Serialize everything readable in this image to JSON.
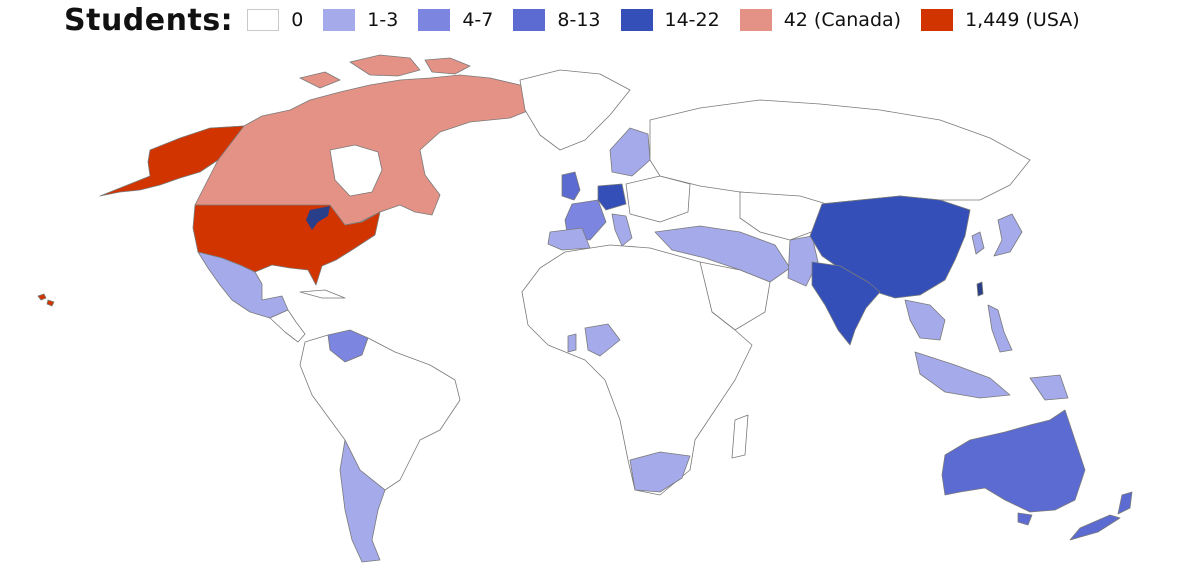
{
  "legend": {
    "title": "Students:",
    "items": [
      {
        "label": "0",
        "color": "#ffffff"
      },
      {
        "label": "1-3",
        "color": "#a5aaeb"
      },
      {
        "label": "4-7",
        "color": "#7c85df"
      },
      {
        "label": "8-13",
        "color": "#5b6bd2"
      },
      {
        "label": "14-22",
        "color": "#3450b8"
      },
      {
        "label": "42 (Canada)",
        "color": "#e49285"
      },
      {
        "label": "1,449 (USA)",
        "color": "#d23400"
      }
    ]
  },
  "colors": {
    "border": "#7a7a7a",
    "zero": "#ffffff",
    "tier1": "#a5aaeb",
    "tier2": "#7c85df",
    "tier3": "#5b6bd2",
    "tier4": "#3450b8",
    "canada": "#e49285",
    "usa": "#d23400",
    "lakes": "#2a3f8a"
  }
}
